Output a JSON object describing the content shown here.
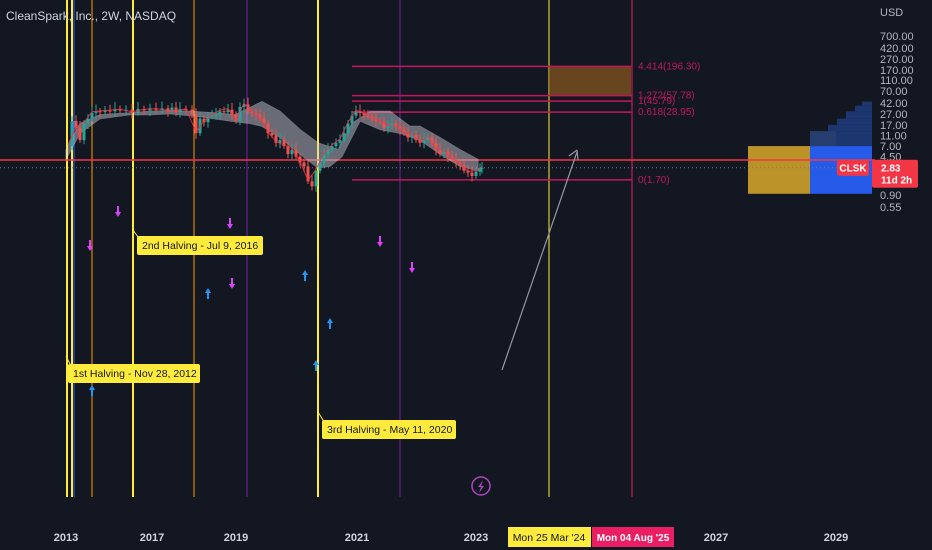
{
  "header": {
    "title": "CleanSpark, Inc., 2W, NASDAQ"
  },
  "chart_data": {
    "type": "candlestick",
    "title": "CleanSpark, Inc., 2W, NASDAQ",
    "symbol": "CLSK",
    "scale": "log",
    "currency_label": "USD",
    "y_ticks": [
      700,
      420,
      270,
      170,
      110,
      70,
      42,
      27,
      17,
      11,
      7,
      4.5,
      2.83,
      1.5,
      0.9,
      0.55
    ],
    "y_tick_labels": [
      "700.00",
      "420.00",
      "270.00",
      "170.00",
      "110.00",
      "70.00",
      "42.00",
      "27.00",
      "17.00",
      "11.00",
      "7.00",
      "4.50",
      "",
      "1.50",
      "0.90",
      "0.55"
    ],
    "x_ticks": [
      "2013",
      "2017",
      "2019",
      "2021",
      "2023",
      "2027",
      "2029"
    ],
    "last_price": {
      "symbol": "CLSK",
      "value": "2.83",
      "countdown": "11d 2h"
    },
    "fib_levels": [
      {
        "label": "4.414(196.30)",
        "value": 196.3
      },
      {
        "label": "1.272(57.78)",
        "value": 57.78
      },
      {
        "label": "1(45.79)",
        "value": 45.79
      },
      {
        "label": "0.618(28.95)",
        "value": 28.95
      },
      {
        "label": "0(1.70)",
        "value": 1.7
      }
    ],
    "horizontal_line": 3.9,
    "target_box": {
      "low": 57.78,
      "high": 196.3
    },
    "annotations": [
      {
        "text": "1st Halving - Nov 28, 2012"
      },
      {
        "text": "2nd Halving - Jul 9, 2016"
      },
      {
        "text": "3rd Halving - May 11, 2020"
      }
    ],
    "date_markers": [
      {
        "text": "Mon 25 Mar '24",
        "color": "#ffeb3b"
      },
      {
        "text": "Mon 04 Aug '25",
        "color": "#e91e63"
      }
    ],
    "volume_profile": [
      {
        "low": 0.95,
        "high": 7.0,
        "left": 1,
        "right": 1
      },
      {
        "low": 7.0,
        "high": 13,
        "left": 0,
        "right": 1
      },
      {
        "low": 13,
        "high": 17,
        "left": 0,
        "right": 1
      },
      {
        "low": 17,
        "high": 22,
        "left": 0,
        "right": 1
      },
      {
        "low": 22,
        "high": 30,
        "left": 0,
        "right": 1
      },
      {
        "low": 30,
        "high": 38,
        "left": 0,
        "right": 1
      },
      {
        "low": 38,
        "high": 45,
        "left": 0,
        "right": 1
      }
    ]
  },
  "colors": {
    "background": "#131722",
    "up": "#26a69a",
    "down": "#ef5350",
    "fib": "#c2185b",
    "halving": "#ffeb3b",
    "orange": "#ff9800",
    "purple": "#7b1fa2",
    "cloud": "#d1d4dc"
  },
  "icons": [
    "lightning-icon",
    "buy-arrow-icon",
    "sell-arrow-icon"
  ]
}
